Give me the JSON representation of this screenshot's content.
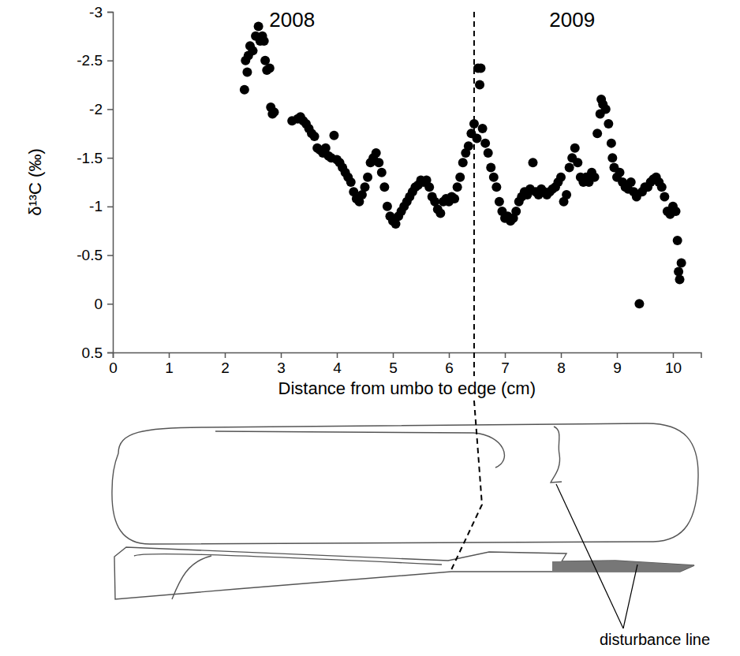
{
  "chart_data": {
    "type": "scatter",
    "x_label": "Distance from umbo to edge (cm)",
    "y_label": "δ¹³C (‰)",
    "xlim": [
      0,
      10.5
    ],
    "xticks": [
      0,
      1,
      2,
      3,
      4,
      5,
      6,
      7,
      8,
      9,
      10
    ],
    "ylim": [
      0.5,
      -3
    ],
    "yticks": [
      -3,
      -2.5,
      -2,
      -1.5,
      -1,
      -0.5,
      0,
      0.5
    ],
    "color": "#000000",
    "marker": "circle",
    "year_boundary": 6.45,
    "annotations": [
      {
        "text": "2008",
        "x": 3.2,
        "y": -2.9
      },
      {
        "text": "2009",
        "x": 8.2,
        "y": -2.9
      }
    ],
    "drawing_label": "disturbance line",
    "x": [
      2.35,
      2.37,
      2.4,
      2.42,
      2.45,
      2.5,
      2.55,
      2.6,
      2.63,
      2.67,
      2.7,
      2.72,
      2.75,
      2.8,
      2.82,
      2.85,
      2.88,
      3.2,
      3.3,
      3.35,
      3.4,
      3.45,
      3.5,
      3.55,
      3.6,
      3.65,
      3.7,
      3.75,
      3.8,
      3.85,
      3.9,
      3.95,
      4.0,
      4.05,
      4.1,
      4.15,
      4.2,
      4.25,
      4.3,
      4.35,
      4.4,
      4.45,
      4.5,
      4.55,
      4.6,
      4.65,
      4.7,
      4.75,
      4.8,
      4.85,
      4.9,
      4.95,
      5.0,
      5.05,
      5.1,
      5.15,
      5.2,
      5.25,
      5.3,
      5.35,
      5.4,
      5.45,
      5.5,
      5.55,
      5.6,
      5.65,
      5.7,
      5.75,
      5.8,
      5.85,
      5.9,
      5.95,
      6.0,
      6.05,
      6.1,
      6.15,
      6.2,
      6.25,
      6.3,
      6.35,
      6.4,
      6.45,
      6.5,
      6.52,
      6.55,
      6.57,
      6.6,
      6.65,
      6.7,
      6.75,
      6.8,
      6.85,
      6.9,
      6.95,
      7.0,
      7.05,
      7.1,
      7.15,
      7.2,
      7.25,
      7.3,
      7.35,
      7.4,
      7.45,
      7.5,
      7.55,
      7.6,
      7.65,
      7.7,
      7.75,
      7.8,
      7.85,
      7.9,
      7.95,
      8.0,
      8.05,
      8.1,
      8.15,
      8.2,
      8.25,
      8.3,
      8.35,
      8.4,
      8.45,
      8.5,
      8.55,
      8.6,
      8.65,
      8.7,
      8.72,
      8.75,
      8.8,
      8.85,
      8.9,
      8.92,
      8.95,
      9.0,
      9.05,
      9.1,
      9.15,
      9.2,
      9.25,
      9.3,
      9.35,
      9.4,
      9.45,
      9.5,
      9.55,
      9.6,
      9.65,
      9.7,
      9.75,
      9.8,
      9.85,
      9.9,
      9.95,
      10.0,
      10.05,
      10.08,
      10.1,
      10.12,
      10.15
    ],
    "values": [
      -2.2,
      -2.5,
      -2.38,
      -2.55,
      -2.65,
      -2.6,
      -2.75,
      -2.85,
      -2.7,
      -2.75,
      -2.7,
      -2.5,
      -2.4,
      -2.42,
      -2.02,
      -1.95,
      -1.97,
      -1.88,
      -1.9,
      -1.92,
      -1.88,
      -1.85,
      -1.8,
      -1.75,
      -1.72,
      -1.6,
      -1.58,
      -1.55,
      -1.6,
      -1.52,
      -1.5,
      -1.73,
      -1.48,
      -1.45,
      -1.4,
      -1.35,
      -1.3,
      -1.25,
      -1.15,
      -1.08,
      -1.05,
      -1.12,
      -1.2,
      -1.3,
      -1.45,
      -1.5,
      -1.55,
      -1.45,
      -1.35,
      -1.2,
      -1.0,
      -0.9,
      -0.85,
      -0.82,
      -0.9,
      -0.95,
      -1.0,
      -1.05,
      -1.1,
      -1.15,
      -1.2,
      -1.22,
      -1.27,
      -1.25,
      -1.27,
      -1.2,
      -1.1,
      -1.05,
      -0.97,
      -0.93,
      -1.05,
      -1.08,
      -1.05,
      -1.1,
      -1.08,
      -1.2,
      -1.3,
      -1.45,
      -1.55,
      -1.62,
      -1.75,
      -1.85,
      -1.7,
      -2.42,
      -2.25,
      -2.42,
      -1.8,
      -1.65,
      -1.55,
      -1.4,
      -1.3,
      -1.2,
      -1.05,
      -0.95,
      -0.88,
      -0.9,
      -0.85,
      -0.88,
      -0.95,
      -1.05,
      -1.1,
      -1.15,
      -1.12,
      -1.18,
      -1.45,
      -1.15,
      -1.12,
      -1.18,
      -1.15,
      -1.12,
      -1.15,
      -1.18,
      -1.2,
      -1.25,
      -1.3,
      -1.05,
      -1.12,
      -1.4,
      -1.5,
      -1.6,
      -1.45,
      -1.3,
      -1.25,
      -1.3,
      -1.25,
      -1.35,
      -1.3,
      -1.75,
      -1.95,
      -2.1,
      -2.05,
      -2.0,
      -1.85,
      -1.65,
      -1.5,
      -1.4,
      -1.3,
      -1.35,
      -1.25,
      -1.2,
      -1.18,
      -1.25,
      -1.15,
      -1.1,
      0.0,
      -1.15,
      -1.2,
      -1.2,
      -1.25,
      -1.28,
      -1.3,
      -1.25,
      -1.2,
      -1.1,
      -0.95,
      -0.92,
      -1.0,
      -0.95,
      -0.65,
      -0.33,
      -0.25,
      -0.42
    ]
  }
}
